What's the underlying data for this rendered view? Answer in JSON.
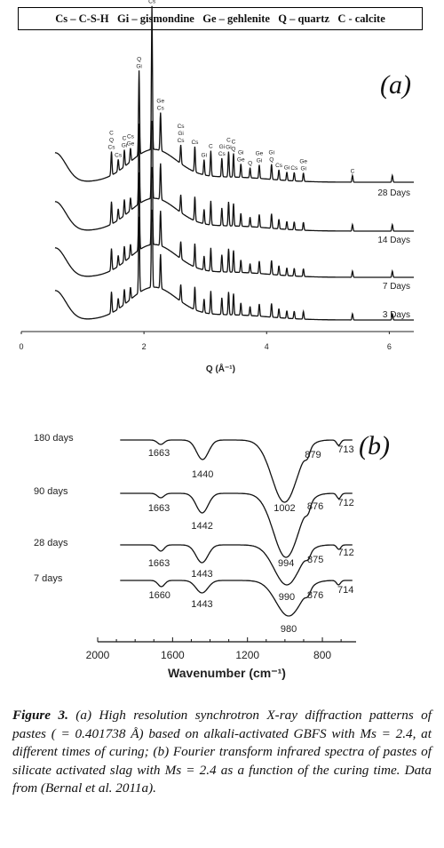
{
  "legend": {
    "items": [
      "Cs – C-S-H",
      "Gi – gismondine",
      "Ge – gehlenite",
      "Q – quartz",
      "C - calcite"
    ]
  },
  "chart_data": [
    {
      "type": "line",
      "panel_label": "(a)",
      "xlabel": "Q (Å⁻¹)",
      "xlim": [
        0,
        6.4
      ],
      "xticks": [
        0,
        2,
        4,
        6
      ],
      "series": [
        {
          "name": "28 Days"
        },
        {
          "name": "14 Days"
        },
        {
          "name": "7 Days"
        },
        {
          "name": "3 Days"
        }
      ],
      "peak_annotations": [
        {
          "x": 1.47,
          "labels": [
            "C",
            "Q",
            "Cs"
          ]
        },
        {
          "x": 1.58,
          "labels": [
            "Cs"
          ]
        },
        {
          "x": 1.68,
          "labels": [
            "C",
            "Gi"
          ]
        },
        {
          "x": 1.78,
          "labels": [
            "Cs",
            "Ge"
          ]
        },
        {
          "x": 1.92,
          "labels": [
            "Q",
            "Gi"
          ]
        },
        {
          "x": 2.13,
          "labels": [
            "C",
            "Cs"
          ]
        },
        {
          "x": 2.27,
          "labels": [
            "Ge",
            "Cs"
          ]
        },
        {
          "x": 2.6,
          "labels": [
            "Cs",
            "Gi",
            "Cs"
          ]
        },
        {
          "x": 2.83,
          "labels": [
            "Cs"
          ]
        },
        {
          "x": 2.98,
          "labels": [
            "Gi"
          ]
        },
        {
          "x": 3.09,
          "labels": [
            "C"
          ]
        },
        {
          "x": 3.27,
          "labels": [
            "Gi",
            "Cs"
          ]
        },
        {
          "x": 3.38,
          "labels": [
            "C",
            "Gi"
          ]
        },
        {
          "x": 3.46,
          "labels": [
            "C",
            "Q"
          ]
        },
        {
          "x": 3.58,
          "labels": [
            "Gi",
            "Ge"
          ]
        },
        {
          "x": 3.73,
          "labels": [
            "Q"
          ]
        },
        {
          "x": 3.88,
          "labels": [
            "Ge",
            "Gi"
          ]
        },
        {
          "x": 4.08,
          "labels": [
            "Gi",
            "Q"
          ]
        },
        {
          "x": 4.2,
          "labels": [
            "Cs"
          ]
        },
        {
          "x": 4.33,
          "labels": [
            "Gi"
          ]
        },
        {
          "x": 4.45,
          "labels": [
            "Cs"
          ]
        },
        {
          "x": 4.6,
          "labels": [
            "Ge",
            "Gi"
          ]
        },
        {
          "x": 5.4,
          "labels": [
            "C"
          ]
        }
      ]
    },
    {
      "type": "line",
      "panel_label": "(b)",
      "xlabel": "Wavenumber (cm⁻¹)",
      "xlim": [
        2000,
        620
      ],
      "xticks": [
        2000,
        1600,
        1200,
        800
      ],
      "series": [
        {
          "name": "180 days",
          "bands": [
            1663,
            1440,
            1002,
            879,
            713
          ]
        },
        {
          "name": "90 days",
          "bands": [
            1663,
            1442,
            994,
            876,
            712
          ]
        },
        {
          "name": "28 days",
          "bands": [
            1663,
            1443,
            990,
            875,
            712
          ]
        },
        {
          "name": "7 days",
          "bands": [
            1660,
            1443,
            980,
            876,
            714
          ]
        }
      ]
    }
  ],
  "caption": {
    "label": "Figure 3.",
    "text": " (a) High resolution synchrotron X-ray diffraction patterns of pastes ( = 0.401738 Å) based on alkali-activated GBFS with Ms = 2.4, at different times of curing; (b) Fourier transform infrared spectra of pastes of silicate activated slag with Ms = 2.4  as a function of the curing time. Data from (Bernal et al. 2011a)."
  }
}
